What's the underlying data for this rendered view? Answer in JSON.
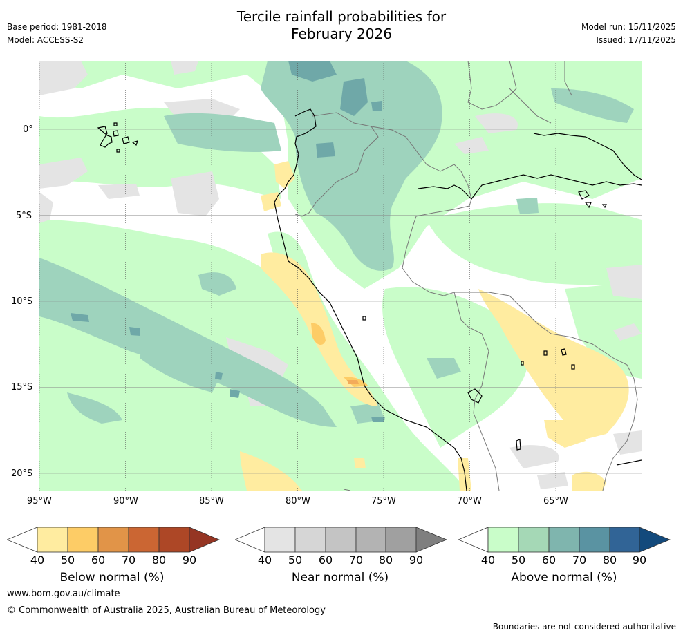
{
  "header": {
    "title_line1": "Tercile rainfall probabilities for",
    "title_line2": "February 2026",
    "base_period": "Base period: 1981-2018",
    "model": "Model: ACCESS-S2",
    "model_run": "Model run: 15/11/2025",
    "issued": "Issued: 17/11/2025"
  },
  "map": {
    "lon_labels": [
      "95°W",
      "90°W",
      "85°W",
      "80°W",
      "75°W",
      "70°W",
      "65°W"
    ],
    "lat_labels": [
      "0°",
      "5°S",
      "10°S",
      "15°S",
      "20°S"
    ],
    "colors": {
      "land_bg": "#ffffff",
      "above_50": "#c9fdc9",
      "above_60": "#9ed3bd",
      "above_70": "#6fa8a8",
      "near_50": "#e4e4e4",
      "below_50": "#ffeca0",
      "below_60": "#fdcc66",
      "below_70": "#f3ab5a",
      "coast": "#000000",
      "border": "#777777"
    }
  },
  "colorbars": [
    {
      "name": "below",
      "title": "Below normal (%)",
      "ticks": [
        "40",
        "50",
        "60",
        "70",
        "80",
        "90"
      ],
      "colors": [
        "#ffffff",
        "#ffeca0",
        "#fdcc66",
        "#e19448",
        "#cb6633",
        "#ad4726",
        "#953523"
      ]
    },
    {
      "name": "near",
      "title": "Near normal (%)",
      "ticks": [
        "40",
        "50",
        "60",
        "70",
        "80",
        "90"
      ],
      "colors": [
        "#ffffff",
        "#e4e4e4",
        "#d6d6d6",
        "#c4c4c4",
        "#b3b3b3",
        "#a0a0a0",
        "#7f7f7f"
      ]
    },
    {
      "name": "above",
      "title": "Above normal (%)",
      "ticks": [
        "40",
        "50",
        "60",
        "70",
        "80",
        "90"
      ],
      "colors": [
        "#ffffff",
        "#c9fdc9",
        "#a5d8b6",
        "#7fb5ae",
        "#5a93a2",
        "#316496",
        "#134a7c"
      ]
    }
  ],
  "footer": {
    "website": "www.bom.gov.au/climate",
    "copyright": "© Commonwealth of Australia 2025, Australian Bureau of Meteorology",
    "disclaimer": "Boundaries are not considered authoritative"
  }
}
